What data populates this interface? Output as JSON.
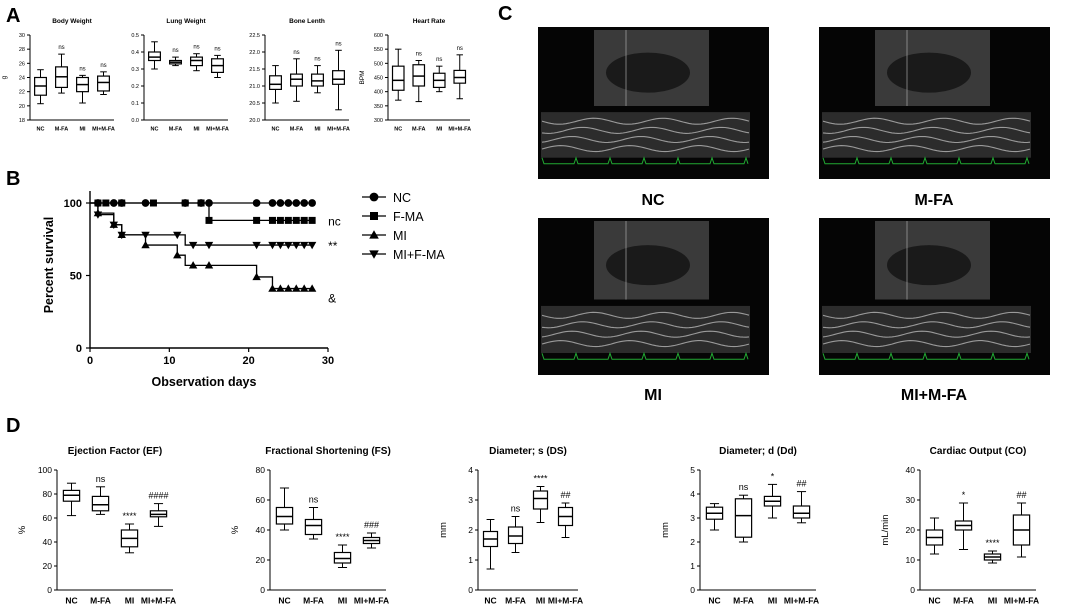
{
  "panel_labels": {
    "a": "A",
    "b": "B",
    "c": "C",
    "d": "D"
  },
  "chart_data": [
    {
      "id": "body_weight",
      "type": "box",
      "title": "Body Weight",
      "ylabel": "g",
      "ylim": [
        18,
        30
      ],
      "yticks": [
        18,
        20,
        22,
        24,
        26,
        28,
        30
      ],
      "categories": [
        "NC",
        "M-FA",
        "MI",
        "MI+M-FA"
      ],
      "boxes": [
        {
          "min": 20.3,
          "q1": 21.5,
          "median": 22.8,
          "q3": 24.0,
          "max": 25.1
        },
        {
          "min": 21.8,
          "q1": 22.6,
          "median": 24.1,
          "q3": 25.5,
          "max": 27.3
        },
        {
          "min": 20.4,
          "q1": 22.0,
          "median": 23.0,
          "q3": 24.0,
          "max": 24.3
        },
        {
          "min": 21.6,
          "q1": 22.1,
          "median": 23.3,
          "q3": 24.2,
          "max": 24.8
        }
      ],
      "annotations": [
        "",
        "ns",
        "ns",
        "ns"
      ]
    },
    {
      "id": "lung_weight",
      "type": "box",
      "title": "Lung Weight",
      "ylabel": "",
      "ylim": [
        0.0,
        0.5
      ],
      "yticks": [
        "0.0",
        "0.1",
        "0.2",
        "0.3",
        "0.4",
        "0.5"
      ],
      "categories": [
        "NC",
        "M-FA",
        "MI",
        "MI+M-FA"
      ],
      "boxes": [
        {
          "min": 0.3,
          "q1": 0.35,
          "median": 0.37,
          "q3": 0.4,
          "max": 0.46
        },
        {
          "min": 0.32,
          "q1": 0.33,
          "median": 0.34,
          "q3": 0.35,
          "max": 0.37
        },
        {
          "min": 0.29,
          "q1": 0.32,
          "median": 0.35,
          "q3": 0.37,
          "max": 0.39
        },
        {
          "min": 0.25,
          "q1": 0.28,
          "median": 0.32,
          "q3": 0.36,
          "max": 0.38
        }
      ],
      "annotations": [
        "",
        "ns",
        "ns",
        "ns"
      ]
    },
    {
      "id": "bone_length",
      "type": "box",
      "title": "Bone Lenth",
      "ylabel": "",
      "ylim": [
        20.0,
        22.5
      ],
      "yticks": [
        "20.0",
        "20.5",
        "21.0",
        "21.5",
        "22.0",
        "22.5"
      ],
      "categories": [
        "NC",
        "M-FA",
        "MI",
        "MI+M-FA"
      ],
      "boxes": [
        {
          "min": 20.5,
          "q1": 20.9,
          "median": 21.05,
          "q3": 21.3,
          "max": 21.6
        },
        {
          "min": 20.55,
          "q1": 21.0,
          "median": 21.2,
          "q3": 21.35,
          "max": 21.8
        },
        {
          "min": 20.8,
          "q1": 21.0,
          "median": 21.15,
          "q3": 21.35,
          "max": 21.6
        },
        {
          "min": 20.3,
          "q1": 21.05,
          "median": 21.2,
          "q3": 21.45,
          "max": 22.05
        }
      ],
      "annotations": [
        "",
        "ns",
        "ns",
        "ns"
      ]
    },
    {
      "id": "heart_rate",
      "type": "box",
      "title": "Heart Rate",
      "ylabel": "BPM",
      "ylim": [
        300,
        600
      ],
      "yticks": [
        300,
        350,
        400,
        450,
        500,
        550,
        600
      ],
      "categories": [
        "NC",
        "M-FA",
        "MI",
        "MI+M-FA"
      ],
      "boxes": [
        {
          "min": 370,
          "q1": 405,
          "median": 440,
          "q3": 490,
          "max": 550
        },
        {
          "min": 365,
          "q1": 420,
          "median": 455,
          "q3": 495,
          "max": 510
        },
        {
          "min": 400,
          "q1": 415,
          "median": 440,
          "q3": 465,
          "max": 490
        },
        {
          "min": 375,
          "q1": 430,
          "median": 450,
          "q3": 475,
          "max": 530
        }
      ],
      "annotations": [
        "",
        "ns",
        "ns",
        "ns"
      ]
    },
    {
      "id": "survival",
      "type": "line",
      "title": "",
      "xlabel": "Observation days",
      "ylabel": "Percent survival",
      "xlim": [
        0,
        30
      ],
      "ylim": [
        0,
        100
      ],
      "xticks": [
        0,
        10,
        20,
        30
      ],
      "yticks": [
        0,
        50,
        100
      ],
      "series": [
        {
          "name": "NC",
          "marker": "circle",
          "annotation": "",
          "steps": [
            [
              0,
              100
            ],
            [
              28,
              100
            ]
          ],
          "markers": [
            [
              1,
              100
            ],
            [
              3,
              100
            ],
            [
              4,
              100
            ],
            [
              7,
              100
            ],
            [
              12,
              100
            ],
            [
              14,
              100
            ],
            [
              15,
              100
            ],
            [
              21,
              100
            ],
            [
              23,
              100
            ],
            [
              24,
              100
            ],
            [
              25,
              100
            ],
            [
              26,
              100
            ],
            [
              27,
              100
            ],
            [
              28,
              100
            ]
          ]
        },
        {
          "name": "F-MA",
          "marker": "square",
          "annotation": "nc",
          "steps": [
            [
              0,
              100
            ],
            [
              15,
              100
            ],
            [
              15,
              88
            ],
            [
              28,
              88
            ]
          ],
          "markers": [
            [
              1,
              100
            ],
            [
              2,
              100
            ],
            [
              4,
              100
            ],
            [
              8,
              100
            ],
            [
              12,
              100
            ],
            [
              14,
              100
            ],
            [
              15,
              88
            ],
            [
              21,
              88
            ],
            [
              23,
              88
            ],
            [
              24,
              88
            ],
            [
              25,
              88
            ],
            [
              26,
              88
            ],
            [
              27,
              88
            ],
            [
              28,
              88
            ]
          ]
        },
        {
          "name": "MI",
          "marker": "triangle-up",
          "annotation": "&",
          "steps": [
            [
              0,
              100
            ],
            [
              1,
              100
            ],
            [
              1,
              93
            ],
            [
              3,
              93
            ],
            [
              3,
              85
            ],
            [
              4,
              85
            ],
            [
              4,
              78
            ],
            [
              7,
              78
            ],
            [
              7,
              71
            ],
            [
              11,
              71
            ],
            [
              11,
              64
            ],
            [
              12,
              64
            ],
            [
              12,
              57
            ],
            [
              21,
              57
            ],
            [
              21,
              49
            ],
            [
              23,
              49
            ],
            [
              23,
              41
            ],
            [
              28,
              41
            ]
          ],
          "markers": [
            [
              1,
              93
            ],
            [
              3,
              85
            ],
            [
              4,
              78
            ],
            [
              7,
              71
            ],
            [
              11,
              64
            ],
            [
              13,
              57
            ],
            [
              15,
              57
            ],
            [
              21,
              49
            ],
            [
              23,
              41
            ],
            [
              24,
              41
            ],
            [
              25,
              41
            ],
            [
              26,
              41
            ],
            [
              27,
              41
            ],
            [
              28,
              41
            ]
          ]
        },
        {
          "name": "MI+F-MA",
          "marker": "triangle-down",
          "annotation": "**",
          "steps": [
            [
              0,
              100
            ],
            [
              1,
              100
            ],
            [
              1,
              92
            ],
            [
              3,
              92
            ],
            [
              3,
              85
            ],
            [
              4,
              85
            ],
            [
              4,
              78
            ],
            [
              12,
              78
            ],
            [
              12,
              71
            ],
            [
              28,
              71
            ]
          ],
          "markers": [
            [
              1,
              92
            ],
            [
              3,
              85
            ],
            [
              4,
              78
            ],
            [
              7,
              78
            ],
            [
              11,
              78
            ],
            [
              13,
              71
            ],
            [
              15,
              71
            ],
            [
              21,
              71
            ],
            [
              23,
              71
            ],
            [
              24,
              71
            ],
            [
              25,
              71
            ],
            [
              26,
              71
            ],
            [
              27,
              71
            ],
            [
              28,
              71
            ]
          ]
        }
      ]
    },
    {
      "id": "ef",
      "type": "box",
      "title": "Ejection Factor (EF)",
      "ylabel": "%",
      "ylim": [
        0,
        100
      ],
      "yticks": [
        0,
        20,
        40,
        60,
        80,
        100
      ],
      "categories": [
        "NC",
        "M-FA",
        "MI",
        "MI+M-FA"
      ],
      "boxes": [
        {
          "min": 62,
          "q1": 74,
          "median": 79,
          "q3": 83,
          "max": 89
        },
        {
          "min": 63,
          "q1": 66,
          "median": 71,
          "q3": 78,
          "max": 86
        },
        {
          "min": 31,
          "q1": 36,
          "median": 43,
          "q3": 50,
          "max": 55
        },
        {
          "min": 53,
          "q1": 61,
          "median": 63,
          "q3": 66,
          "max": 72
        }
      ],
      "annotations": [
        "",
        "ns",
        "****",
        "####"
      ]
    },
    {
      "id": "fs",
      "type": "box",
      "title": "Fractional Shortening (FS)",
      "ylabel": "%",
      "ylim": [
        0,
        80
      ],
      "yticks": [
        0,
        20,
        40,
        60,
        80
      ],
      "categories": [
        "NC",
        "M-FA",
        "MI",
        "MI+M-FA"
      ],
      "boxes": [
        {
          "min": 40,
          "q1": 44,
          "median": 49,
          "q3": 55,
          "max": 68
        },
        {
          "min": 34,
          "q1": 37,
          "median": 43,
          "q3": 47,
          "max": 55
        },
        {
          "min": 15,
          "q1": 18,
          "median": 21,
          "q3": 25,
          "max": 30
        },
        {
          "min": 28,
          "q1": 31,
          "median": 33,
          "q3": 35,
          "max": 38
        }
      ],
      "annotations": [
        "",
        "ns",
        "****",
        "###"
      ]
    },
    {
      "id": "ds",
      "type": "box",
      "title": "Diameter; s (DS)",
      "ylabel": "mm",
      "ylim": [
        0,
        4
      ],
      "yticks": [
        0,
        1,
        2,
        3,
        4
      ],
      "categories": [
        "NC",
        "M-FA",
        "MI",
        "MI+M-FA"
      ],
      "boxes": [
        {
          "min": 0.7,
          "q1": 1.45,
          "median": 1.7,
          "q3": 1.95,
          "max": 2.35
        },
        {
          "min": 1.25,
          "q1": 1.55,
          "median": 1.8,
          "q3": 2.1,
          "max": 2.45
        },
        {
          "min": 2.25,
          "q1": 2.7,
          "median": 3.05,
          "q3": 3.3,
          "max": 3.45
        },
        {
          "min": 1.75,
          "q1": 2.15,
          "median": 2.45,
          "q3": 2.75,
          "max": 2.9
        }
      ],
      "annotations": [
        "",
        "ns",
        "****",
        "##"
      ]
    },
    {
      "id": "dd",
      "type": "box",
      "title": "Diameter; d (Dd)",
      "ylabel": "mm",
      "ylim": [
        0,
        5
      ],
      "yticks": [
        0,
        1,
        2,
        3,
        4,
        5
      ],
      "categories": [
        "NC",
        "M-FA",
        "MI",
        "MI+M-FA"
      ],
      "boxes": [
        {
          "min": 2.5,
          "q1": 2.95,
          "median": 3.2,
          "q3": 3.45,
          "max": 3.6
        },
        {
          "min": 2.0,
          "q1": 2.2,
          "median": 3.1,
          "q3": 3.8,
          "max": 3.95
        },
        {
          "min": 3.0,
          "q1": 3.5,
          "median": 3.7,
          "q3": 3.9,
          "max": 4.4
        },
        {
          "min": 2.8,
          "q1": 3.0,
          "median": 3.2,
          "q3": 3.5,
          "max": 4.1
        }
      ],
      "annotations": [
        "",
        "ns",
        "*",
        "##"
      ]
    },
    {
      "id": "co",
      "type": "box",
      "title": "Cardiac Output (CO)",
      "ylabel": "mL/min",
      "ylim": [
        0,
        40
      ],
      "yticks": [
        0,
        10,
        20,
        30,
        40
      ],
      "categories": [
        "NC",
        "M-FA",
        "MI",
        "MI+M-FA"
      ],
      "boxes": [
        {
          "min": 12,
          "q1": 15,
          "median": 17.5,
          "q3": 20,
          "max": 24
        },
        {
          "min": 13.5,
          "q1": 20,
          "median": 21.5,
          "q3": 23,
          "max": 29
        },
        {
          "min": 9,
          "q1": 10,
          "median": 11,
          "q3": 12,
          "max": 13
        },
        {
          "min": 11,
          "q1": 15,
          "median": 20,
          "q3": 25,
          "max": 29
        }
      ],
      "annotations": [
        "",
        "*",
        "****",
        "##"
      ]
    }
  ],
  "echo_labels": [
    "NC",
    "M-FA",
    "MI",
    "MI+M-FA"
  ]
}
